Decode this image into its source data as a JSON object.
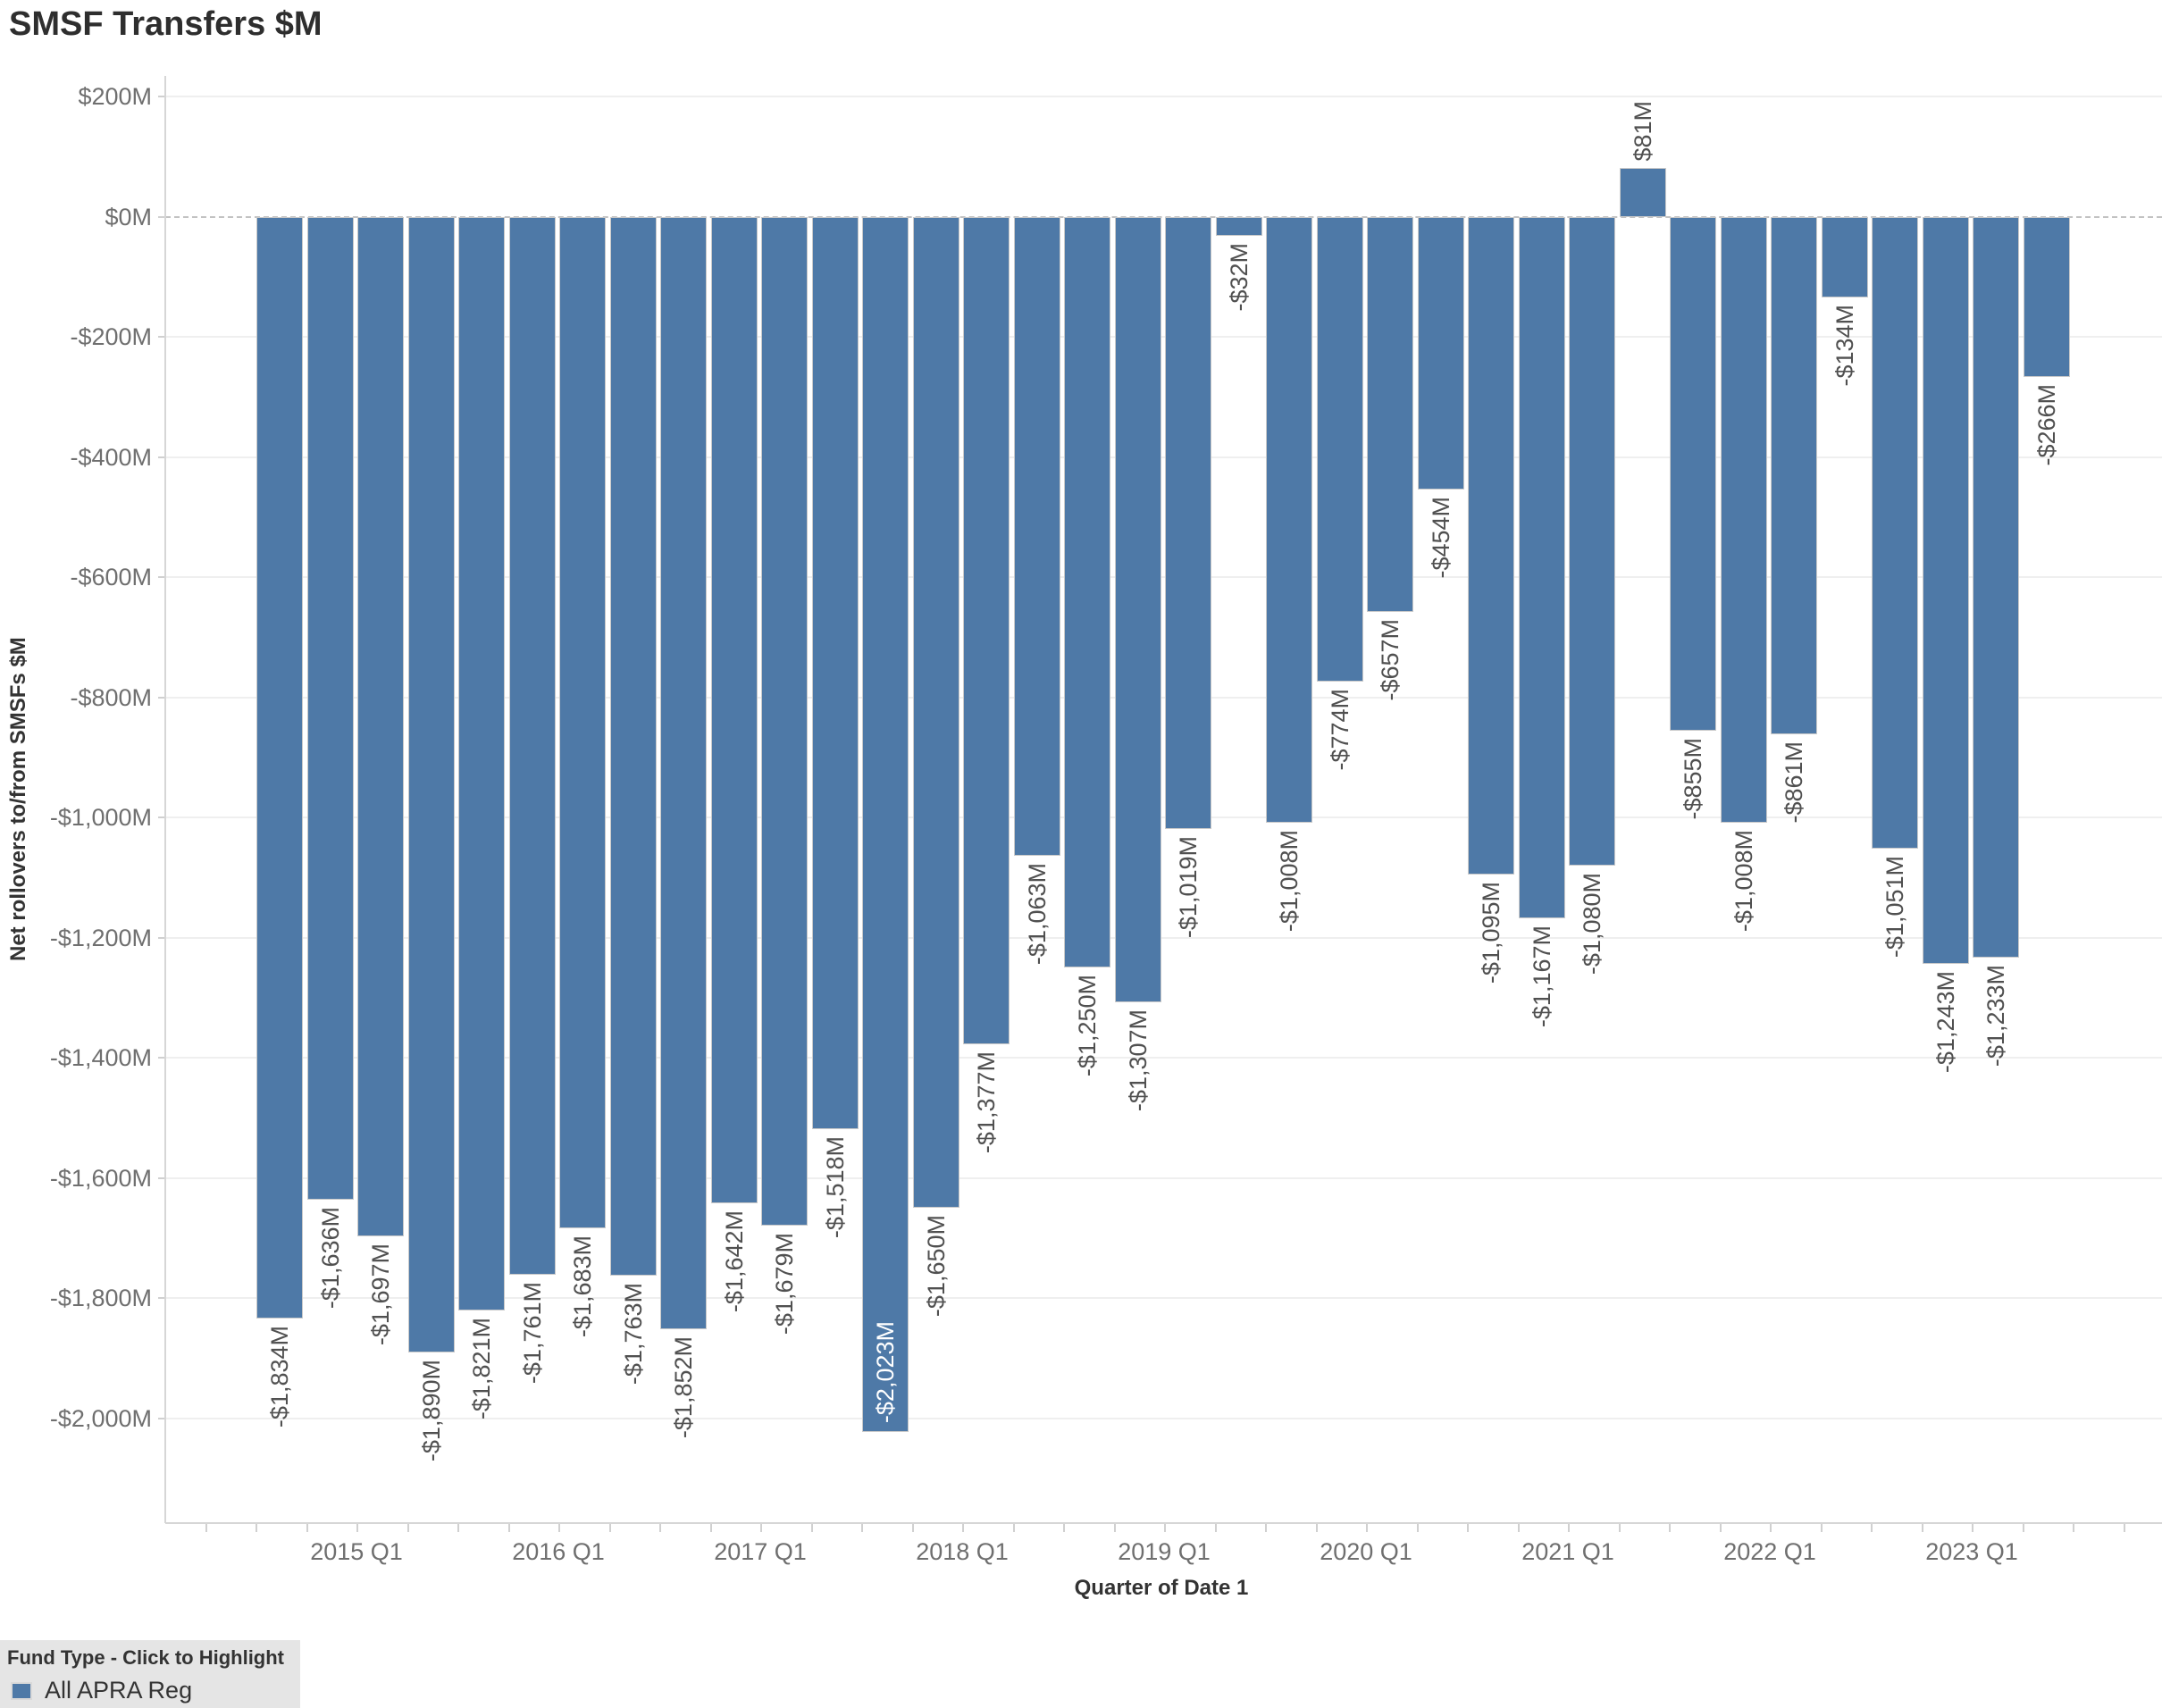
{
  "title": "SMSF Transfers $M",
  "chart_data": {
    "type": "bar",
    "title": "SMSF Transfers $M",
    "xlabel": "Quarter of Date 1",
    "ylabel": "Net rollovers to/from SMSFs $M",
    "bar_color": "#4e79a7",
    "grid": "horizontal",
    "zero_line": "dashed",
    "ylim": [
      -2172,
      235
    ],
    "y_ticks": [
      {
        "value": 200,
        "label": "$200M"
      },
      {
        "value": 0,
        "label": "$0M"
      },
      {
        "value": -200,
        "label": "-$200M"
      },
      {
        "value": -400,
        "label": "-$400M"
      },
      {
        "value": -600,
        "label": "-$600M"
      },
      {
        "value": -800,
        "label": "-$800M"
      },
      {
        "value": -1000,
        "label": "-$1,000M"
      },
      {
        "value": -1200,
        "label": "-$1,200M"
      },
      {
        "value": -1400,
        "label": "-$1,400M"
      },
      {
        "value": -1600,
        "label": "-$1,600M"
      },
      {
        "value": -1800,
        "label": "-$1,800M"
      },
      {
        "value": -2000,
        "label": "-$2,000M"
      }
    ],
    "x_tick_labels": [
      "2015 Q1",
      "2016 Q1",
      "2017 Q1",
      "2018 Q1",
      "2019 Q1",
      "2020 Q1",
      "2021 Q1",
      "2022 Q1",
      "2023 Q1"
    ],
    "bars": [
      {
        "quarter": "2014 Q3",
        "value": -1834,
        "label": "-$1,834M"
      },
      {
        "quarter": "2014 Q4",
        "value": -1636,
        "label": "-$1,636M"
      },
      {
        "quarter": "2015 Q1",
        "value": -1697,
        "label": "-$1,697M"
      },
      {
        "quarter": "2015 Q2",
        "value": -1890,
        "label": "-$1,890M"
      },
      {
        "quarter": "2015 Q3",
        "value": -1821,
        "label": "-$1,821M"
      },
      {
        "quarter": "2015 Q4",
        "value": -1761,
        "label": "-$1,761M"
      },
      {
        "quarter": "2016 Q1",
        "value": -1683,
        "label": "-$1,683M"
      },
      {
        "quarter": "2016 Q2",
        "value": -1763,
        "label": "-$1,763M"
      },
      {
        "quarter": "2016 Q3",
        "value": -1852,
        "label": "-$1,852M"
      },
      {
        "quarter": "2016 Q4",
        "value": -1642,
        "label": "-$1,642M"
      },
      {
        "quarter": "2017 Q1",
        "value": -1679,
        "label": "-$1,679M"
      },
      {
        "quarter": "2017 Q2",
        "value": -1518,
        "label": "-$1,518M"
      },
      {
        "quarter": "2017 Q3",
        "value": -2023,
        "label": "-$2,023M",
        "label_placement": "inside"
      },
      {
        "quarter": "2017 Q4",
        "value": -1650,
        "label": "-$1,650M"
      },
      {
        "quarter": "2018 Q1",
        "value": -1377,
        "label": "-$1,377M"
      },
      {
        "quarter": "2018 Q2",
        "value": -1063,
        "label": "-$1,063M"
      },
      {
        "quarter": "2018 Q3",
        "value": -1250,
        "label": "-$1,250M"
      },
      {
        "quarter": "2018 Q4",
        "value": -1307,
        "label": "-$1,307M"
      },
      {
        "quarter": "2019 Q1",
        "value": -1019,
        "label": "-$1,019M"
      },
      {
        "quarter": "2019 Q2",
        "value": -32,
        "label": "-$32M"
      },
      {
        "quarter": "2019 Q3",
        "value": -1008,
        "label": "-$1,008M"
      },
      {
        "quarter": "2019 Q4",
        "value": -774,
        "label": "-$774M"
      },
      {
        "quarter": "2020 Q1",
        "value": -657,
        "label": "-$657M"
      },
      {
        "quarter": "2020 Q2",
        "value": -454,
        "label": "-$454M"
      },
      {
        "quarter": "2020 Q3",
        "value": -1095,
        "label": "-$1,095M"
      },
      {
        "quarter": "2020 Q4",
        "value": -1167,
        "label": "-$1,167M"
      },
      {
        "quarter": "2021 Q1",
        "value": -1080,
        "label": "-$1,080M"
      },
      {
        "quarter": "2021 Q2",
        "value": 81,
        "label": "$81M"
      },
      {
        "quarter": "2021 Q3",
        "value": -855,
        "label": "-$855M"
      },
      {
        "quarter": "2021 Q4",
        "value": -1008,
        "label": "-$1,008M"
      },
      {
        "quarter": "2022 Q1",
        "value": -861,
        "label": "-$861M"
      },
      {
        "quarter": "2022 Q2",
        "value": -134,
        "label": "-$134M"
      },
      {
        "quarter": "2022 Q3",
        "value": -1051,
        "label": "-$1,051M"
      },
      {
        "quarter": "2022 Q4",
        "value": -1243,
        "label": "-$1,243M"
      },
      {
        "quarter": "2023 Q1",
        "value": -1233,
        "label": "-$1,233M"
      },
      {
        "quarter": "2023 Q2",
        "value": -266,
        "label": "-$266M"
      }
    ]
  },
  "legend": {
    "title": "Fund Type - Click to Highlight",
    "items": [
      {
        "label": "All APRA Reg",
        "color": "#4e79a7"
      }
    ]
  }
}
